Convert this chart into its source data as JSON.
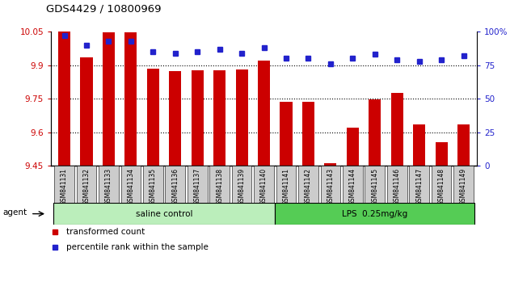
{
  "title": "GDS4429 / 10800969",
  "samples": [
    "GSM841131",
    "GSM841132",
    "GSM841133",
    "GSM841134",
    "GSM841135",
    "GSM841136",
    "GSM841137",
    "GSM841138",
    "GSM841139",
    "GSM841140",
    "GSM841141",
    "GSM841142",
    "GSM841143",
    "GSM841144",
    "GSM841145",
    "GSM841146",
    "GSM841147",
    "GSM841148",
    "GSM841149"
  ],
  "transformed_count": [
    10.048,
    9.935,
    10.047,
    10.046,
    9.883,
    9.872,
    9.875,
    9.878,
    9.88,
    9.92,
    9.735,
    9.735,
    9.462,
    9.62,
    9.747,
    9.774,
    9.635,
    9.555,
    9.635
  ],
  "percentile_rank": [
    97,
    90,
    93,
    93,
    85,
    84,
    85,
    87,
    84,
    88,
    80,
    80,
    76,
    80,
    83,
    79,
    78,
    79,
    82
  ],
  "group1_label": "saline control",
  "group2_label": "LPS  0.25mg/kg",
  "group1_count": 10,
  "group2_count": 9,
  "bar_color": "#cc0000",
  "dot_color": "#2222cc",
  "ylim_left": [
    9.45,
    10.05
  ],
  "ylim_right": [
    0,
    100
  ],
  "yticks_left": [
    9.45,
    9.6,
    9.75,
    9.9,
    10.05
  ],
  "ytick_labels_left": [
    "9.45",
    "9.6",
    "9.75",
    "9.9",
    "10.05"
  ],
  "yticks_right": [
    0,
    25,
    50,
    75,
    100
  ],
  "ytick_labels_right": [
    "0",
    "25",
    "50",
    "75",
    "100%"
  ],
  "grid_lines": [
    9.9,
    9.75,
    9.6
  ],
  "group1_facecolor": "#bbeebb",
  "group2_facecolor": "#55cc55",
  "tick_box_color": "#cccccc",
  "legend_bar_label": "transformed count",
  "legend_dot_label": "percentile rank within the sample",
  "bg_color": "#ffffff"
}
